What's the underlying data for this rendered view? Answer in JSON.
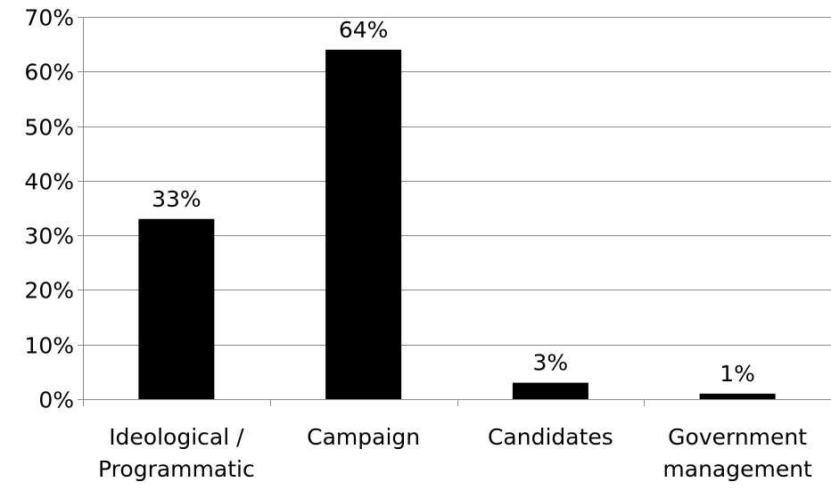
{
  "chart_data": {
    "type": "bar",
    "categories": [
      [
        "Ideological /",
        "Programmatic"
      ],
      [
        "Campaign"
      ],
      [
        "Candidates"
      ],
      [
        "Government",
        "management"
      ]
    ],
    "values": [
      33,
      64,
      3,
      1
    ],
    "data_labels": [
      "33%",
      "64%",
      "3%",
      "1%"
    ],
    "y_ticks": [
      "0%",
      "10%",
      "20%",
      "30%",
      "40%",
      "50%",
      "60%",
      "70%"
    ],
    "ylim": [
      0,
      70
    ],
    "title": "",
    "xlabel": "",
    "ylabel": "",
    "grid": true,
    "legend": "none",
    "colors": {
      "bar": "#000000",
      "grid": "#8c8c8c",
      "axis": "#8c8c8c",
      "text": "#000000"
    }
  }
}
